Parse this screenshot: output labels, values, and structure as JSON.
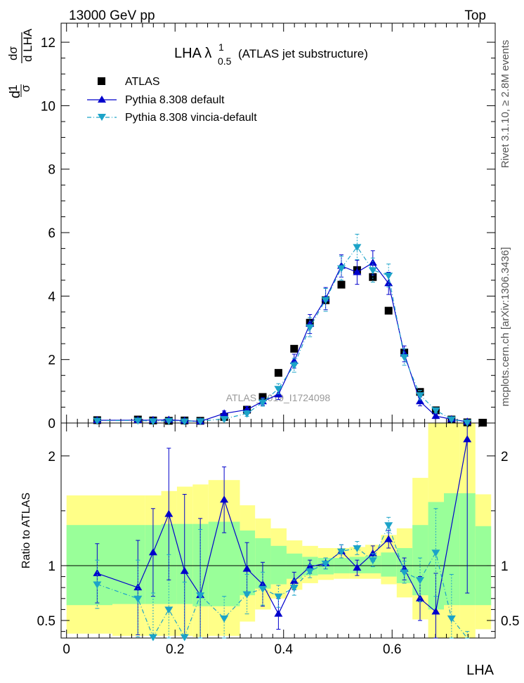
{
  "header": {
    "energy": "13000 GeV pp",
    "process": "Top",
    "rivet": "Rivet 3.1.10, ≥ 2.8M events",
    "site": "mcplots.cern.ch [arXiv:1306.3436]",
    "watermark": "ATLAS_2019_I1724098"
  },
  "chart_data": {
    "type": "scatter",
    "title": "LHA λ¹₀.₅ (ATLAS jet substructure)",
    "title_main": "LHA λ",
    "title_sup": "1",
    "title_sub": "0.5",
    "title_tail": "(ATLAS jet substructure)",
    "xlabel": "LHA",
    "ylabel_top": "1/σ dσ/d LHA",
    "ylabel_ratio": "Ratio to ATLAS",
    "xlim": [
      -0.01,
      0.79
    ],
    "ylim_main": [
      0,
      12.6
    ],
    "ylim_ratio": [
      0.34,
      2.3
    ],
    "xticks": [
      "0",
      "0.2",
      "0.4",
      "0.6"
    ],
    "yticks_main": [
      "0",
      "2",
      "4",
      "6",
      "8",
      "10",
      "12"
    ],
    "yticks_ratio": [
      "0.5",
      "1",
      "2"
    ],
    "legend": [
      "ATLAS",
      "Pythia 8.308 default",
      "Pythia 8.308 vincia-default"
    ],
    "colors": {
      "data": "#000000",
      "default": "#0000cc",
      "vincia": "#1ca3c8",
      "band1": "#99ff99",
      "band2": "#ffff88"
    },
    "x": [
      0.0565,
      0.1315,
      0.1595,
      0.1885,
      0.2175,
      0.2465,
      0.2905,
      0.3325,
      0.3615,
      0.3905,
      0.4195,
      0.4485,
      0.4775,
      0.5065,
      0.5355,
      0.5645,
      0.5935,
      0.6225,
      0.6515,
      0.6805,
      0.7095,
      0.7385,
      0.7675
    ],
    "atlas": [
      0.09,
      0.11,
      0.08,
      0.07,
      0.08,
      0.07,
      0.19,
      0.42,
      0.82,
      1.58,
      2.34,
      3.16,
      3.87,
      4.36,
      4.82,
      4.6,
      3.54,
      2.22,
      0.98,
      0.4,
      0.11,
      0.02,
      0.01
    ],
    "series": [
      {
        "name": "Pythia 8.308 default",
        "y": [
          0.085,
          0.09,
          0.09,
          0.1,
          0.075,
          0.05,
          0.3,
          0.42,
          0.68,
          0.9,
          1.95,
          3.12,
          3.92,
          4.95,
          4.75,
          5.05,
          4.4,
          2.18,
          0.68,
          0.22,
          0.12,
          0.04,
          null
        ],
        "err": [
          0.03,
          0.03,
          0.03,
          0.03,
          0.03,
          0.03,
          0.08,
          0.1,
          0.12,
          0.16,
          0.22,
          0.3,
          0.35,
          0.35,
          0.38,
          0.38,
          0.35,
          0.25,
          0.14,
          0.08,
          0.04,
          0.02,
          null
        ],
        "ratio": [
          0.93,
          0.8,
          1.12,
          1.47,
          0.95,
          0.73,
          1.6,
          0.97,
          0.83,
          0.56,
          0.86,
          0.99,
          1.02,
          1.13,
          0.98,
          1.11,
          1.24,
          0.97,
          0.7,
          0.58,
          null,
          2.15,
          null
        ],
        "ratio_err": [
          0.27,
          0.43,
          0.4,
          0.6,
          0.7,
          0.7,
          0.3,
          0.24,
          0.2,
          0.14,
          0.08,
          0.06,
          0.05,
          0.06,
          0.07,
          0.07,
          0.08,
          0.1,
          0.2,
          0.35,
          null,
          1.4,
          null
        ]
      },
      {
        "name": "Pythia 8.308 vincia-default",
        "y": [
          0.075,
          0.08,
          0.06,
          0.07,
          0.055,
          0.06,
          0.13,
          0.3,
          0.65,
          1.08,
          1.82,
          3.02,
          3.88,
          4.88,
          5.55,
          4.82,
          4.65,
          2.08,
          0.88,
          0.4,
          0.12,
          0.02,
          null
        ],
        "err": [
          0.03,
          0.03,
          0.03,
          0.03,
          0.03,
          0.03,
          0.06,
          0.09,
          0.12,
          0.16,
          0.22,
          0.3,
          0.36,
          0.38,
          0.4,
          0.38,
          0.36,
          0.26,
          0.15,
          0.08,
          0.04,
          0.02,
          null
        ],
        "ratio": [
          0.83,
          0.7,
          0.35,
          0.6,
          0.35,
          0.73,
          0.52,
          0.74,
          0.79,
          0.72,
          0.8,
          0.95,
          1.02,
          1.13,
          1.16,
          1.05,
          1.37,
          0.94,
          0.87,
          1.12,
          0.52,
          0.2,
          null
        ],
        "ratio_err": [
          0.22,
          0.35,
          0.4,
          0.5,
          0.5,
          0.6,
          0.2,
          0.18,
          0.15,
          0.1,
          0.07,
          0.06,
          0.05,
          0.06,
          0.06,
          0.06,
          0.07,
          0.1,
          0.2,
          0.4,
          0.4,
          0.2,
          null
        ]
      }
    ],
    "bands": {
      "edges": [
        0.0,
        0.0845,
        0.1445,
        0.1745,
        0.2035,
        0.2325,
        0.2615,
        0.3195,
        0.3475,
        0.3765,
        0.4055,
        0.4345,
        0.4635,
        0.4925,
        0.5215,
        0.5505,
        0.5795,
        0.6085,
        0.6375,
        0.6665,
        0.6955,
        0.7245,
        0.7535,
        0.7825
      ],
      "inner_lo": [
        0.64,
        0.65,
        0.65,
        0.65,
        0.65,
        0.63,
        0.63,
        0.73,
        0.79,
        0.83,
        0.88,
        0.91,
        0.92,
        0.93,
        0.93,
        0.93,
        0.9,
        0.84,
        0.73,
        0.6,
        0.64,
        0.64,
        0.64
      ],
      "inner_hi": [
        1.37,
        1.37,
        1.37,
        1.38,
        1.38,
        1.38,
        1.4,
        1.32,
        1.25,
        1.18,
        1.11,
        1.08,
        1.07,
        1.07,
        1.08,
        1.09,
        1.12,
        1.16,
        1.37,
        1.58,
        1.66,
        1.66,
        1.36
      ],
      "outer_lo": [
        0.38,
        0.36,
        0.36,
        0.36,
        0.36,
        0.35,
        0.36,
        0.49,
        0.6,
        0.7,
        0.78,
        0.84,
        0.87,
        0.88,
        0.88,
        0.88,
        0.83,
        0.71,
        0.51,
        0.34,
        0.34,
        0.34,
        0.42
      ],
      "outer_hi": [
        1.64,
        1.64,
        1.64,
        1.68,
        1.72,
        1.74,
        1.78,
        1.55,
        1.43,
        1.34,
        1.23,
        1.18,
        1.16,
        1.16,
        1.17,
        1.19,
        1.28,
        1.34,
        1.8,
        2.3,
        2.3,
        2.3,
        1.65
      ]
    }
  }
}
